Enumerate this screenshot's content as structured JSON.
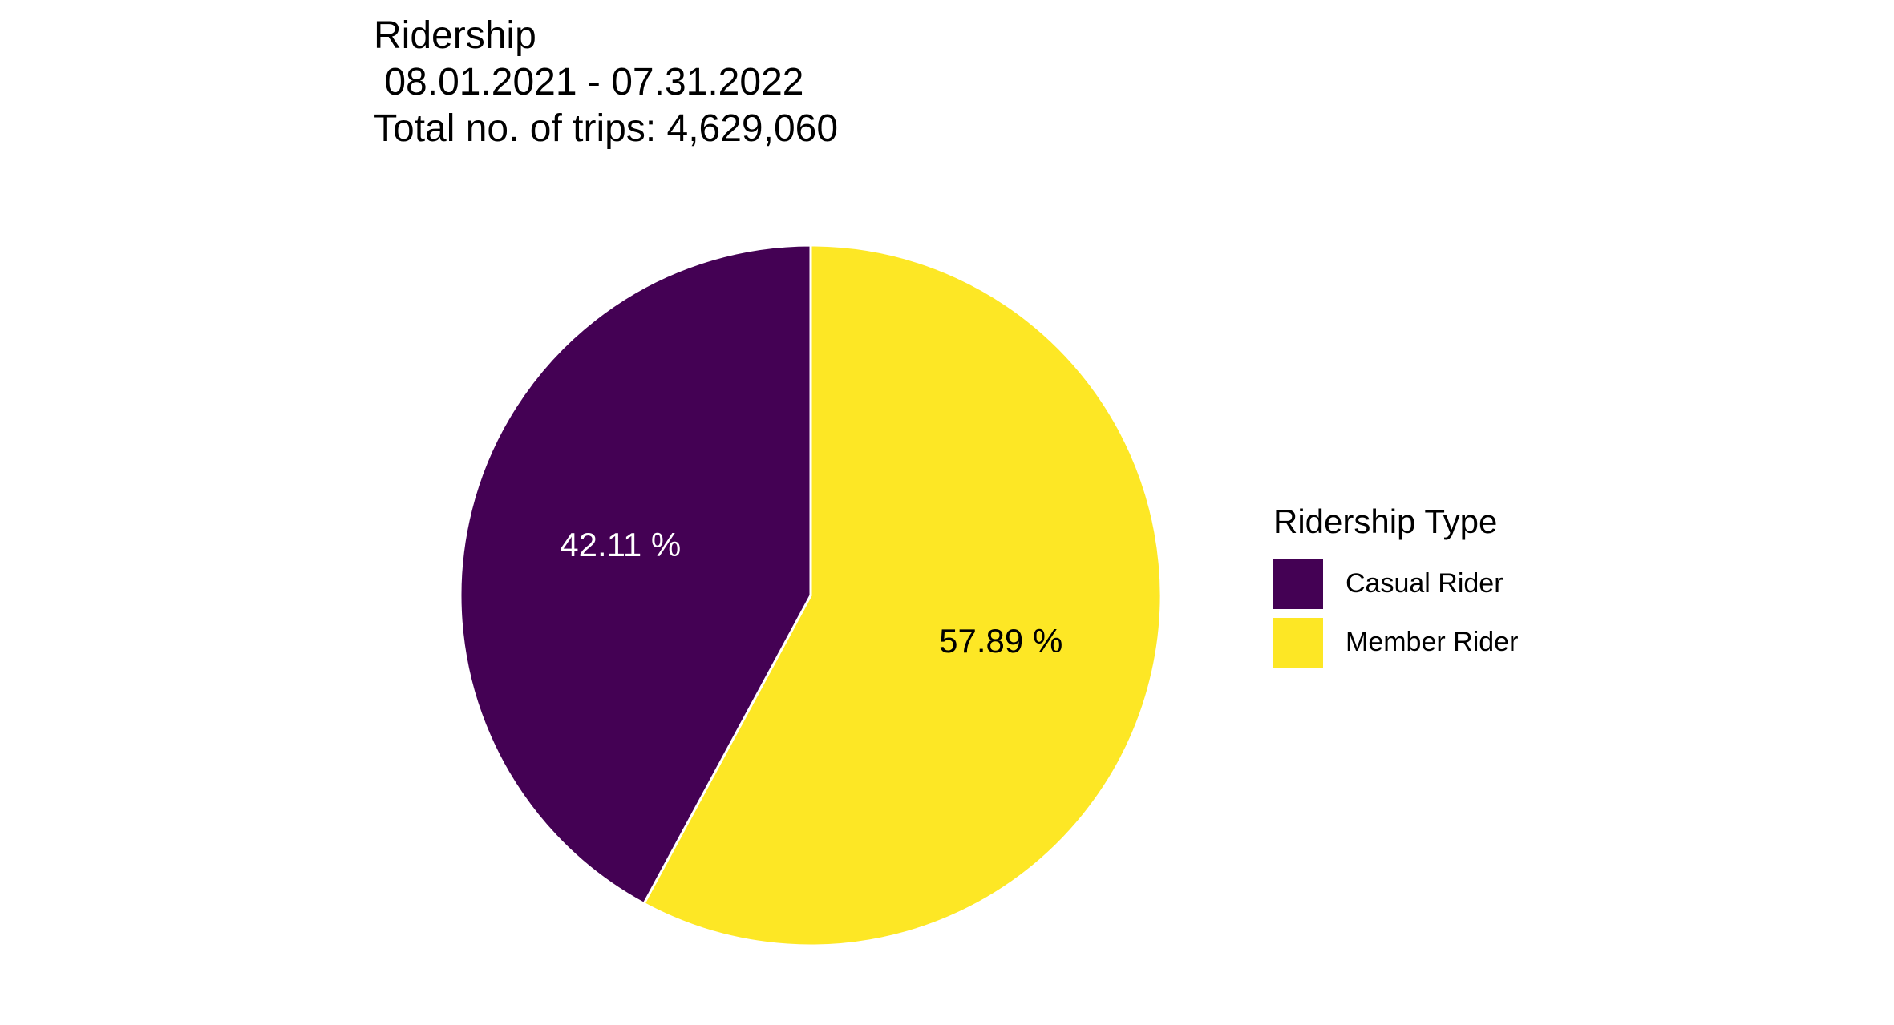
{
  "chart_data": {
    "type": "pie",
    "title": "Ridership",
    "subtitle": " 08.01.2021 - 07.31.2022",
    "caption": "Total no. of trips: 4,629,060",
    "legend_title": "Ridership Type",
    "legend_position": "right",
    "slices": [
      {
        "label": "Casual Rider",
        "value": 42.11,
        "data_label": "42.11 %",
        "color": "#440154",
        "label_color": "#ffffff"
      },
      {
        "label": "Member Rider",
        "value": 57.89,
        "data_label": "57.89 %",
        "color": "#FDE725",
        "label_color": "#000000"
      }
    ]
  }
}
